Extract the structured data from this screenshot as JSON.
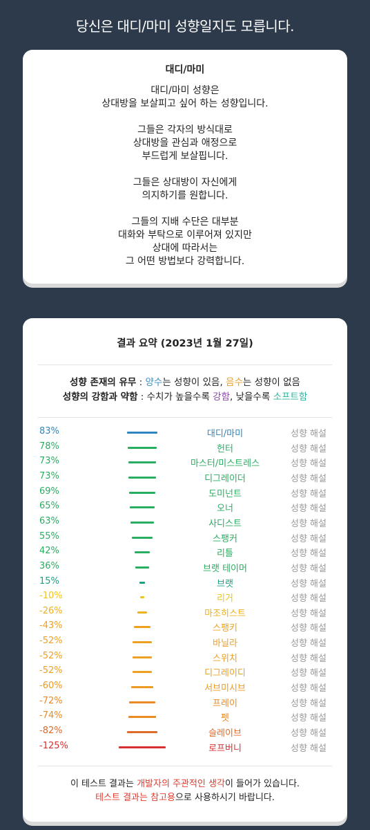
{
  "headline": "당신은 대디/마미 성향일지도 모릅니다.",
  "card1": {
    "title": "대디/마미",
    "paragraphs": [
      [
        "대디/마미 성향은",
        "상대방을 보살피고 싶어 하는 성향입니다."
      ],
      [
        "그들은 각자의 방식대로",
        "상대방을 관심과 애정으로",
        "부드럽게 보살핍니다."
      ],
      [
        "그들은 상대방이 자신에게",
        "의지하기를 원합니다."
      ],
      [
        "그들의 지배 수단은 대부분",
        "대화와 부탁으로 이루어져 있지만",
        "상대에 따라서는",
        "그 어떤 방법보다 강력합니다."
      ]
    ]
  },
  "summary": {
    "title": "결과 요약 (2023년 1월 27일)",
    "legend1": {
      "label": "성향 존재의 유무",
      "sep": " : ",
      "pos": "양수",
      "pos_text": "는 성향이 있음, ",
      "neg": "음수",
      "neg_text": "는 성향이 없음"
    },
    "legend2": {
      "label": "성향의 강함과 약함",
      "text": " : 수치가 높을수록 ",
      "strong": "강함",
      "mid": ", 낮을수록 ",
      "soft": "소프트함"
    },
    "rows": [
      {
        "pct": "83%",
        "value": 83,
        "name": "대디/마미",
        "color": "#2e86c1",
        "desc": "성향 해설"
      },
      {
        "pct": "78%",
        "value": 78,
        "name": "헌터",
        "color": "#27ae60",
        "desc": "성향 해설"
      },
      {
        "pct": "73%",
        "value": 73,
        "name": "마스터/미스트레스",
        "color": "#27ae60",
        "desc": "성향 해설"
      },
      {
        "pct": "73%",
        "value": 73,
        "name": "디그레이더",
        "color": "#27ae60",
        "desc": "성향 해설"
      },
      {
        "pct": "69%",
        "value": 69,
        "name": "도미넌트",
        "color": "#27ae60",
        "desc": "성향 해설"
      },
      {
        "pct": "65%",
        "value": 65,
        "name": "오너",
        "color": "#27ae60",
        "desc": "성향 해설"
      },
      {
        "pct": "63%",
        "value": 63,
        "name": "사디스트",
        "color": "#27ae60",
        "desc": "성향 해설"
      },
      {
        "pct": "55%",
        "value": 55,
        "name": "스팽커",
        "color": "#27ae60",
        "desc": "성향 해설"
      },
      {
        "pct": "42%",
        "value": 42,
        "name": "리틀",
        "color": "#27ae60",
        "desc": "성향 해설"
      },
      {
        "pct": "36%",
        "value": 36,
        "name": "브랫 테이머",
        "color": "#27ae60",
        "desc": "성향 해설"
      },
      {
        "pct": "15%",
        "value": 15,
        "name": "브랫",
        "color": "#16a085",
        "desc": "성향 해설"
      },
      {
        "pct": "-10%",
        "value": -10,
        "name": "리거",
        "color": "#f1c40f",
        "desc": "성향 해설"
      },
      {
        "pct": "-26%",
        "value": -26,
        "name": "마조히스트",
        "color": "#f0b020",
        "desc": "성향 해설"
      },
      {
        "pct": "-43%",
        "value": -43,
        "name": "스팽키",
        "color": "#f0a020",
        "desc": "성향 해설"
      },
      {
        "pct": "-52%",
        "value": -52,
        "name": "바닐라",
        "color": "#eea020",
        "desc": "성향 해설"
      },
      {
        "pct": "-52%",
        "value": -52,
        "name": "스위치",
        "color": "#eea020",
        "desc": "성향 해설"
      },
      {
        "pct": "-52%",
        "value": -52,
        "name": "디그레이디",
        "color": "#eea020",
        "desc": "성향 해설"
      },
      {
        "pct": "-60%",
        "value": -60,
        "name": "서브미시브",
        "color": "#ec9a20",
        "desc": "성향 해설"
      },
      {
        "pct": "-72%",
        "value": -72,
        "name": "프레이",
        "color": "#e98a22",
        "desc": "성향 해설"
      },
      {
        "pct": "-74%",
        "value": -74,
        "name": "펫",
        "color": "#e98a22",
        "desc": "성향 해설"
      },
      {
        "pct": "-82%",
        "value": -82,
        "name": "슬레이브",
        "color": "#e06a28",
        "desc": "성향 해설"
      },
      {
        "pct": "-125%",
        "value": -125,
        "name": "로프버니",
        "color": "#d63030",
        "desc": "성향 해설"
      }
    ],
    "footer": {
      "l1a": "이 테스트 결과는 ",
      "l1b": "개발자의 주관적인 생각",
      "l1c": "이 들어가 있습니다.",
      "l2a": "테스트 결과는 참고용",
      "l2b": "으로 사용하시기 바랍니다."
    }
  }
}
